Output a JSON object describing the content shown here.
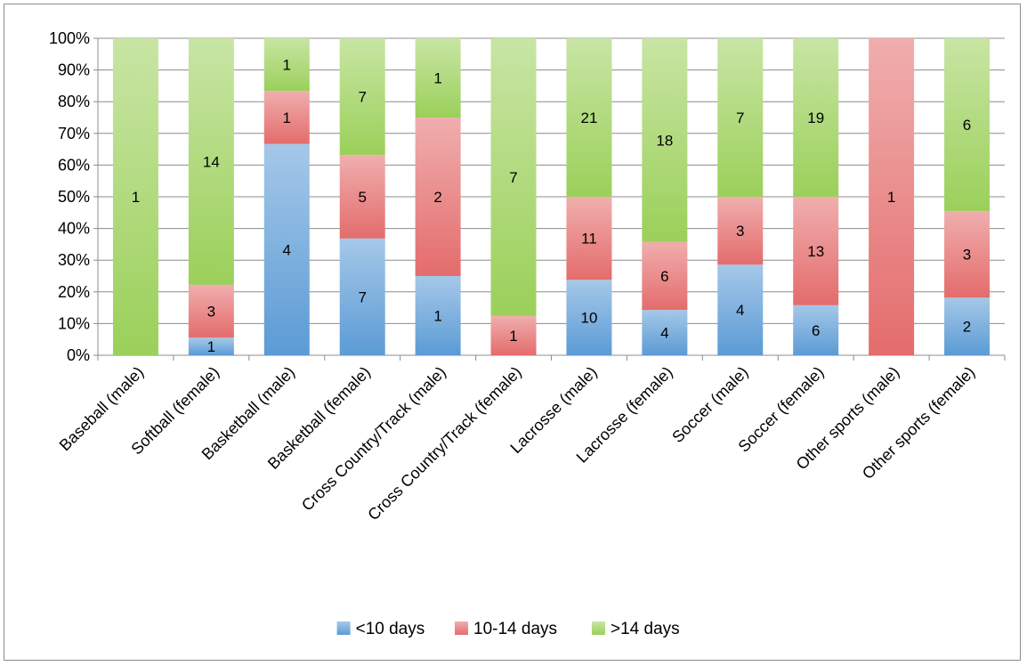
{
  "chart_data": {
    "type": "bar",
    "stacked": true,
    "percent_stacked": true,
    "categories": [
      "Baseball (male)",
      "Softball (female)",
      "Basketball (male)",
      "Basketball (female)",
      "Cross Country/Track (male)",
      "Cross Country/Track (female)",
      "Lacrosse (male)",
      "Lacrosse (female)",
      "Soccer (male)",
      "Soccer (female)",
      "Other sports (male)",
      "Other sports (female)"
    ],
    "series": [
      {
        "name": "<10 days",
        "color": "#5b9bd5",
        "values": [
          0,
          1,
          4,
          7,
          1,
          0,
          10,
          4,
          4,
          6,
          0,
          2
        ]
      },
      {
        "name": "10-14 days",
        "color": "#e46c6c",
        "values": [
          0,
          3,
          1,
          5,
          2,
          1,
          11,
          6,
          3,
          13,
          1,
          3
        ]
      },
      {
        "name": ">14 days",
        "color": "#9bd05a",
        "values": [
          1,
          14,
          1,
          7,
          1,
          7,
          21,
          18,
          7,
          19,
          0,
          6
        ]
      }
    ],
    "y_ticks": [
      "0%",
      "10%",
      "20%",
      "30%",
      "40%",
      "50%",
      "60%",
      "70%",
      "80%",
      "90%",
      "100%"
    ],
    "ylim": [
      0,
      100
    ],
    "grid": true,
    "legend_position": "bottom",
    "data_labels": true
  }
}
